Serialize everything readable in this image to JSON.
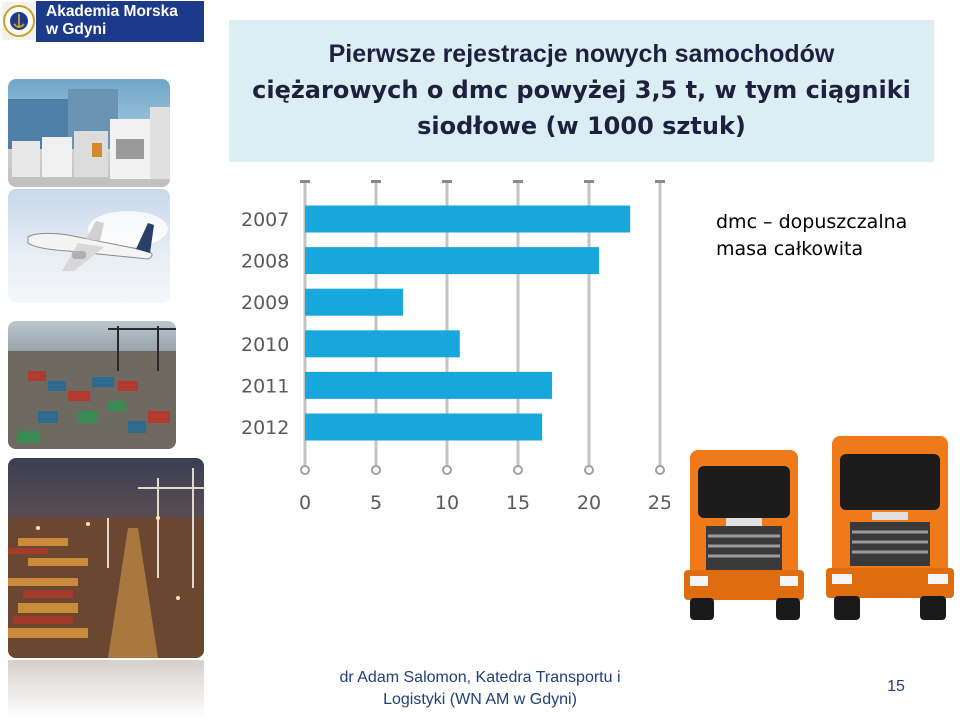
{
  "logo": {
    "text": "Akademia Morska\nw Gdyni"
  },
  "title": {
    "line1": "Pierwsze rejestracje nowych samochodów",
    "line2": "ciężarowych o dmc powyżej 3,5 t, w tym ciągniki",
    "line3": "siodłowe (w 1000 sztuk)"
  },
  "note": "dmc – dopuszczalna\nmasa całkowita",
  "footer": {
    "author": "dr Adam Salomon, Katedra Transportu i\nLogistyki (WN AM w Gdyni)",
    "page": "15"
  },
  "chart_data": {
    "type": "bar",
    "orientation": "horizontal",
    "categories": [
      "2007",
      "2008",
      "2009",
      "2010",
      "2011",
      "2012"
    ],
    "values": [
      22.9,
      20.7,
      6.9,
      10.9,
      17.4,
      16.7
    ],
    "xticks": [
      0,
      5,
      10,
      15,
      20,
      25
    ],
    "xlim": [
      0,
      25
    ],
    "bar_color": "#17a7dc",
    "grid": true
  }
}
